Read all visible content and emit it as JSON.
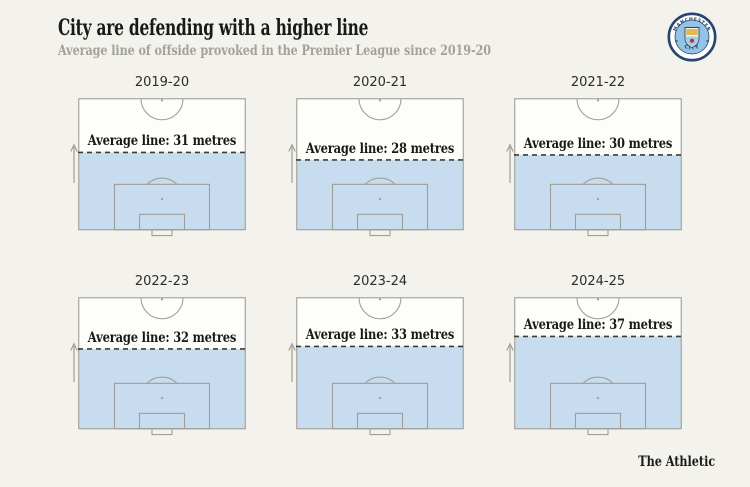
{
  "header": {
    "title": "City are defending with a higher line",
    "subtitle": "Average line of offside provoked in the Premier League since 2019-20",
    "badge_top": "MANCHESTER",
    "badge_bottom": "CITY"
  },
  "footer": {
    "brand": "The Athletic"
  },
  "chart_data": {
    "type": "pitch-small-multiples",
    "title": "City are defending with a higher line",
    "subtitle": "Average line of offside provoked in the Premier League since 2019-20",
    "unit": "metres",
    "pitch_half_length_m": 52.5,
    "layout": {
      "rows": 2,
      "cols": 3,
      "legend": "none",
      "grid": "off"
    },
    "categories": [
      "2019-20",
      "2020-21",
      "2021-22",
      "2022-23",
      "2023-24",
      "2024-25"
    ],
    "values": [
      31,
      28,
      30,
      32,
      33,
      37
    ],
    "seasons": [
      {
        "label": "2019-20",
        "value": 31,
        "annotation": "Average line: 31 metres"
      },
      {
        "label": "2020-21",
        "value": 28,
        "annotation": "Average line: 28 metres"
      },
      {
        "label": "2021-22",
        "value": 30,
        "annotation": "Average line: 30 metres"
      },
      {
        "label": "2022-23",
        "value": 32,
        "annotation": "Average line: 32 metres"
      },
      {
        "label": "2023-24",
        "value": 33,
        "annotation": "Average line: 33 metres"
      },
      {
        "label": "2024-25",
        "value": 37,
        "annotation": "Average line: 37 metres"
      }
    ],
    "colors": {
      "background": "#f3f2ec",
      "pitch_fill": "#fdfdf9",
      "shaded_area": "#c7dcee",
      "pitch_lines": "#a09e96",
      "dashed_line": "#3b3b38",
      "title_text": "#191917",
      "subtitle_text": "#a2a19b"
    }
  }
}
